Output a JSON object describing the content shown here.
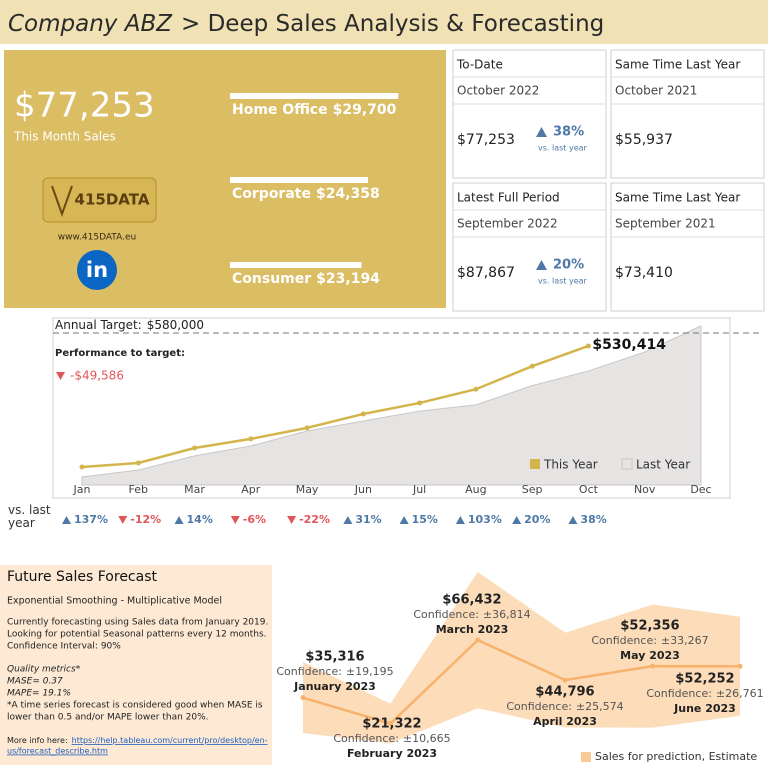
{
  "header": {
    "title_company": "Company ABZ",
    "title_rest": "> Deep Sales Analysis & Forecasting"
  },
  "summary": {
    "value": "$77,253",
    "label": "This Month Sales",
    "logo": "415DATA",
    "website": "www.415DATA.eu",
    "linkedin": "in"
  },
  "segments": {
    "names": [
      "Home Office",
      "Corporate",
      "Consumer"
    ],
    "values": [
      29700,
      24358,
      23194
    ],
    "value_labels": [
      "$29,700",
      "$24,358",
      "$23,194"
    ],
    "color": "#ffffff"
  },
  "cards": [
    {
      "title": "To-Date",
      "period": "October 2022",
      "value": "$77,253",
      "change": "38%",
      "change_note": "vs. last year",
      "direction": "up"
    },
    {
      "title": "Same Time Last Year",
      "period": "October 2021",
      "value": "$55,937"
    },
    {
      "title": "Latest Full Period",
      "period": "September 2022",
      "value": "$87,867",
      "change": "20%",
      "change_note": "vs. last year",
      "direction": "up"
    },
    {
      "title": "Same Time Last Year",
      "period": "September 2021",
      "value": "$73,410"
    }
  ],
  "chart_data": [
    {
      "type": "line",
      "categories": [
        "Jan",
        "Feb",
        "Mar",
        "Apr",
        "May",
        "Jun",
        "Jul",
        "Aug",
        "Sep",
        "Oct",
        "Nov",
        "Dec"
      ],
      "series": [
        {
          "name": "This Year",
          "color": "#d4b54c",
          "values": [
            68700,
            84000,
            141000,
            176000,
            218000,
            271000,
            313000,
            365294,
            453161,
            530414,
            null,
            null
          ],
          "value_labels": [
            null,
            null,
            null,
            null,
            null,
            null,
            null,
            null,
            null,
            "$530,414",
            null,
            null
          ]
        },
        {
          "name": "Last Year",
          "color": "#e6e3e3",
          "kind": "area",
          "values": [
            30500,
            57000,
            111000,
            149000,
            206000,
            244000,
            282000,
            305653,
            379063,
            435000,
            507000,
            607000
          ]
        }
      ],
      "ylim": [
        0,
        637000
      ],
      "target": {
        "label": "Annual Target:",
        "value": 580000,
        "value_label": "$580,000"
      },
      "performance": {
        "label": "Performance to target:",
        "value": -49586,
        "value_label": "-$49,586"
      },
      "vs_last_year": {
        "label": "vs. last year",
        "values": [
          137,
          -12,
          14,
          -6,
          -22,
          31,
          15,
          103,
          20,
          38
        ],
        "value_labels": [
          "137%",
          "-12%",
          "14%",
          "-6%",
          "-22%",
          "31%",
          "15%",
          "103%",
          "20%",
          "38%"
        ]
      },
      "legend": "bottom-right"
    },
    {
      "type": "line",
      "categories": [
        "January 2023",
        "February 2023",
        "March 2023",
        "April 2023",
        "May 2023",
        "June 2023"
      ],
      "series": [
        {
          "name": "Sales for prediction, Estimate",
          "color": "#f7b26c",
          "band_color": "#fcdcb9",
          "values": [
            35316,
            21322,
            66432,
            44796,
            52356,
            52252
          ],
          "value_labels": [
            "$35,316",
            "$21,322",
            "$66,432",
            "$44,796",
            "$52,356",
            "$52,252"
          ],
          "confidence": [
            19195,
            10665,
            36814,
            25574,
            33267,
            26761
          ],
          "confidence_labels": [
            "±19,195",
            "±10,665",
            "±36,814",
            "±25,574",
            "±33,267",
            "±26,761"
          ]
        }
      ],
      "confidence_prefix": "Confidence:",
      "ylim": [
        0,
        107000
      ],
      "legend": "bottom-right"
    }
  ],
  "forecast_info": {
    "title": "Future Sales Forecast",
    "subtitle": "Exponential Smoothing - Multiplicative Model",
    "description": [
      "Currently forecasting using Sales data from January 2019.",
      "Looking for potential Seasonal patterns every 12 months.",
      "Confidence Interval: 90%"
    ],
    "quality_title": "Quality metrics*",
    "mase": "MASE= 0.37",
    "mape": "MAPE= 19.1%",
    "footnote": [
      "*A time series forecast is considered good when MASE is",
      "lower than 0.5 and/or MAPE lower than 20%."
    ],
    "more_info": "More info here:",
    "url": [
      "https://help.tableau.com/current/pro/desktop/en-",
      "us/forecast_describe.htm"
    ]
  }
}
